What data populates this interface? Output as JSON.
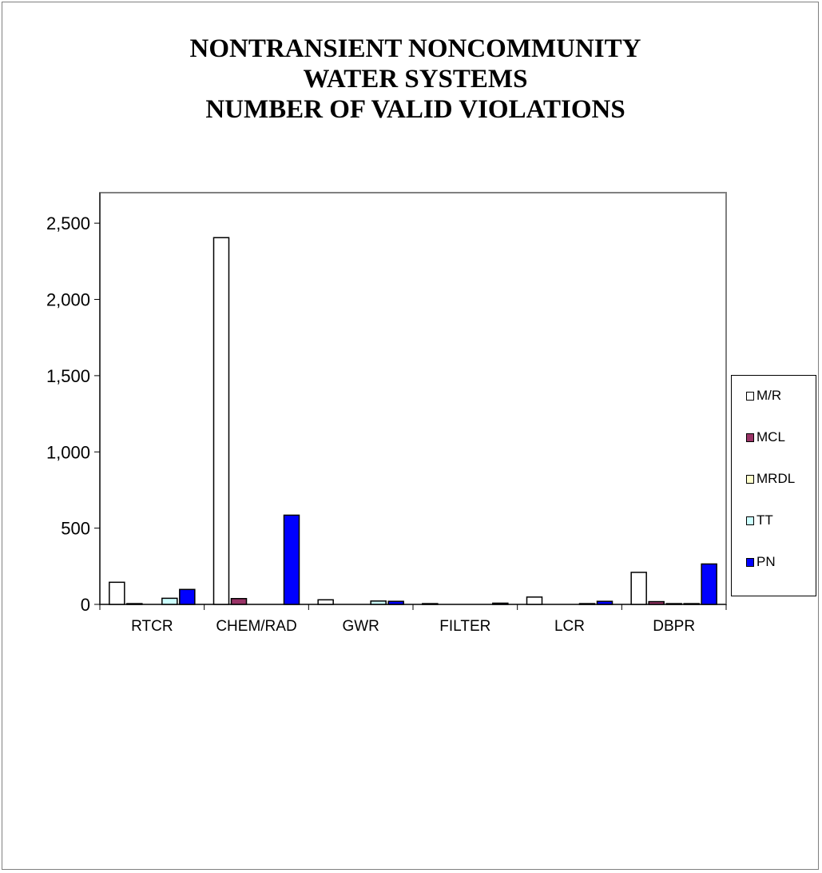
{
  "chart_data": {
    "type": "bar",
    "title": [
      "NONTRANSIENT NONCOMMUNITY",
      "WATER SYSTEMS",
      "NUMBER OF VALID VIOLATIONS"
    ],
    "categories": [
      "RTCR",
      "CHEM/RAD",
      "GWR",
      "FILTER",
      "LCR",
      "DBPR"
    ],
    "ylim": [
      0,
      2700
    ],
    "yticks": [
      0,
      500,
      1000,
      1500,
      2000,
      2500
    ],
    "ytick_labels": [
      "0",
      "500",
      "1,000",
      "1,500",
      "2,000",
      "2,500"
    ],
    "legend_position": "right",
    "grid": false,
    "series": [
      {
        "name": "M/R",
        "color": "#ffffff",
        "values": [
          145,
          2405,
          30,
          5,
          48,
          210
        ]
      },
      {
        "name": "MCL",
        "color": "#993366",
        "values": [
          5,
          38,
          0,
          0,
          0,
          18
        ]
      },
      {
        "name": "MRDL",
        "color": "#ffffcc",
        "values": [
          0,
          0,
          0,
          0,
          0,
          5
        ]
      },
      {
        "name": "TT",
        "color": "#ccffff",
        "values": [
          40,
          0,
          22,
          0,
          5,
          5
        ]
      },
      {
        "name": "PN",
        "color": "#0000ff",
        "values": [
          98,
          585,
          20,
          8,
          20,
          265
        ]
      }
    ]
  }
}
